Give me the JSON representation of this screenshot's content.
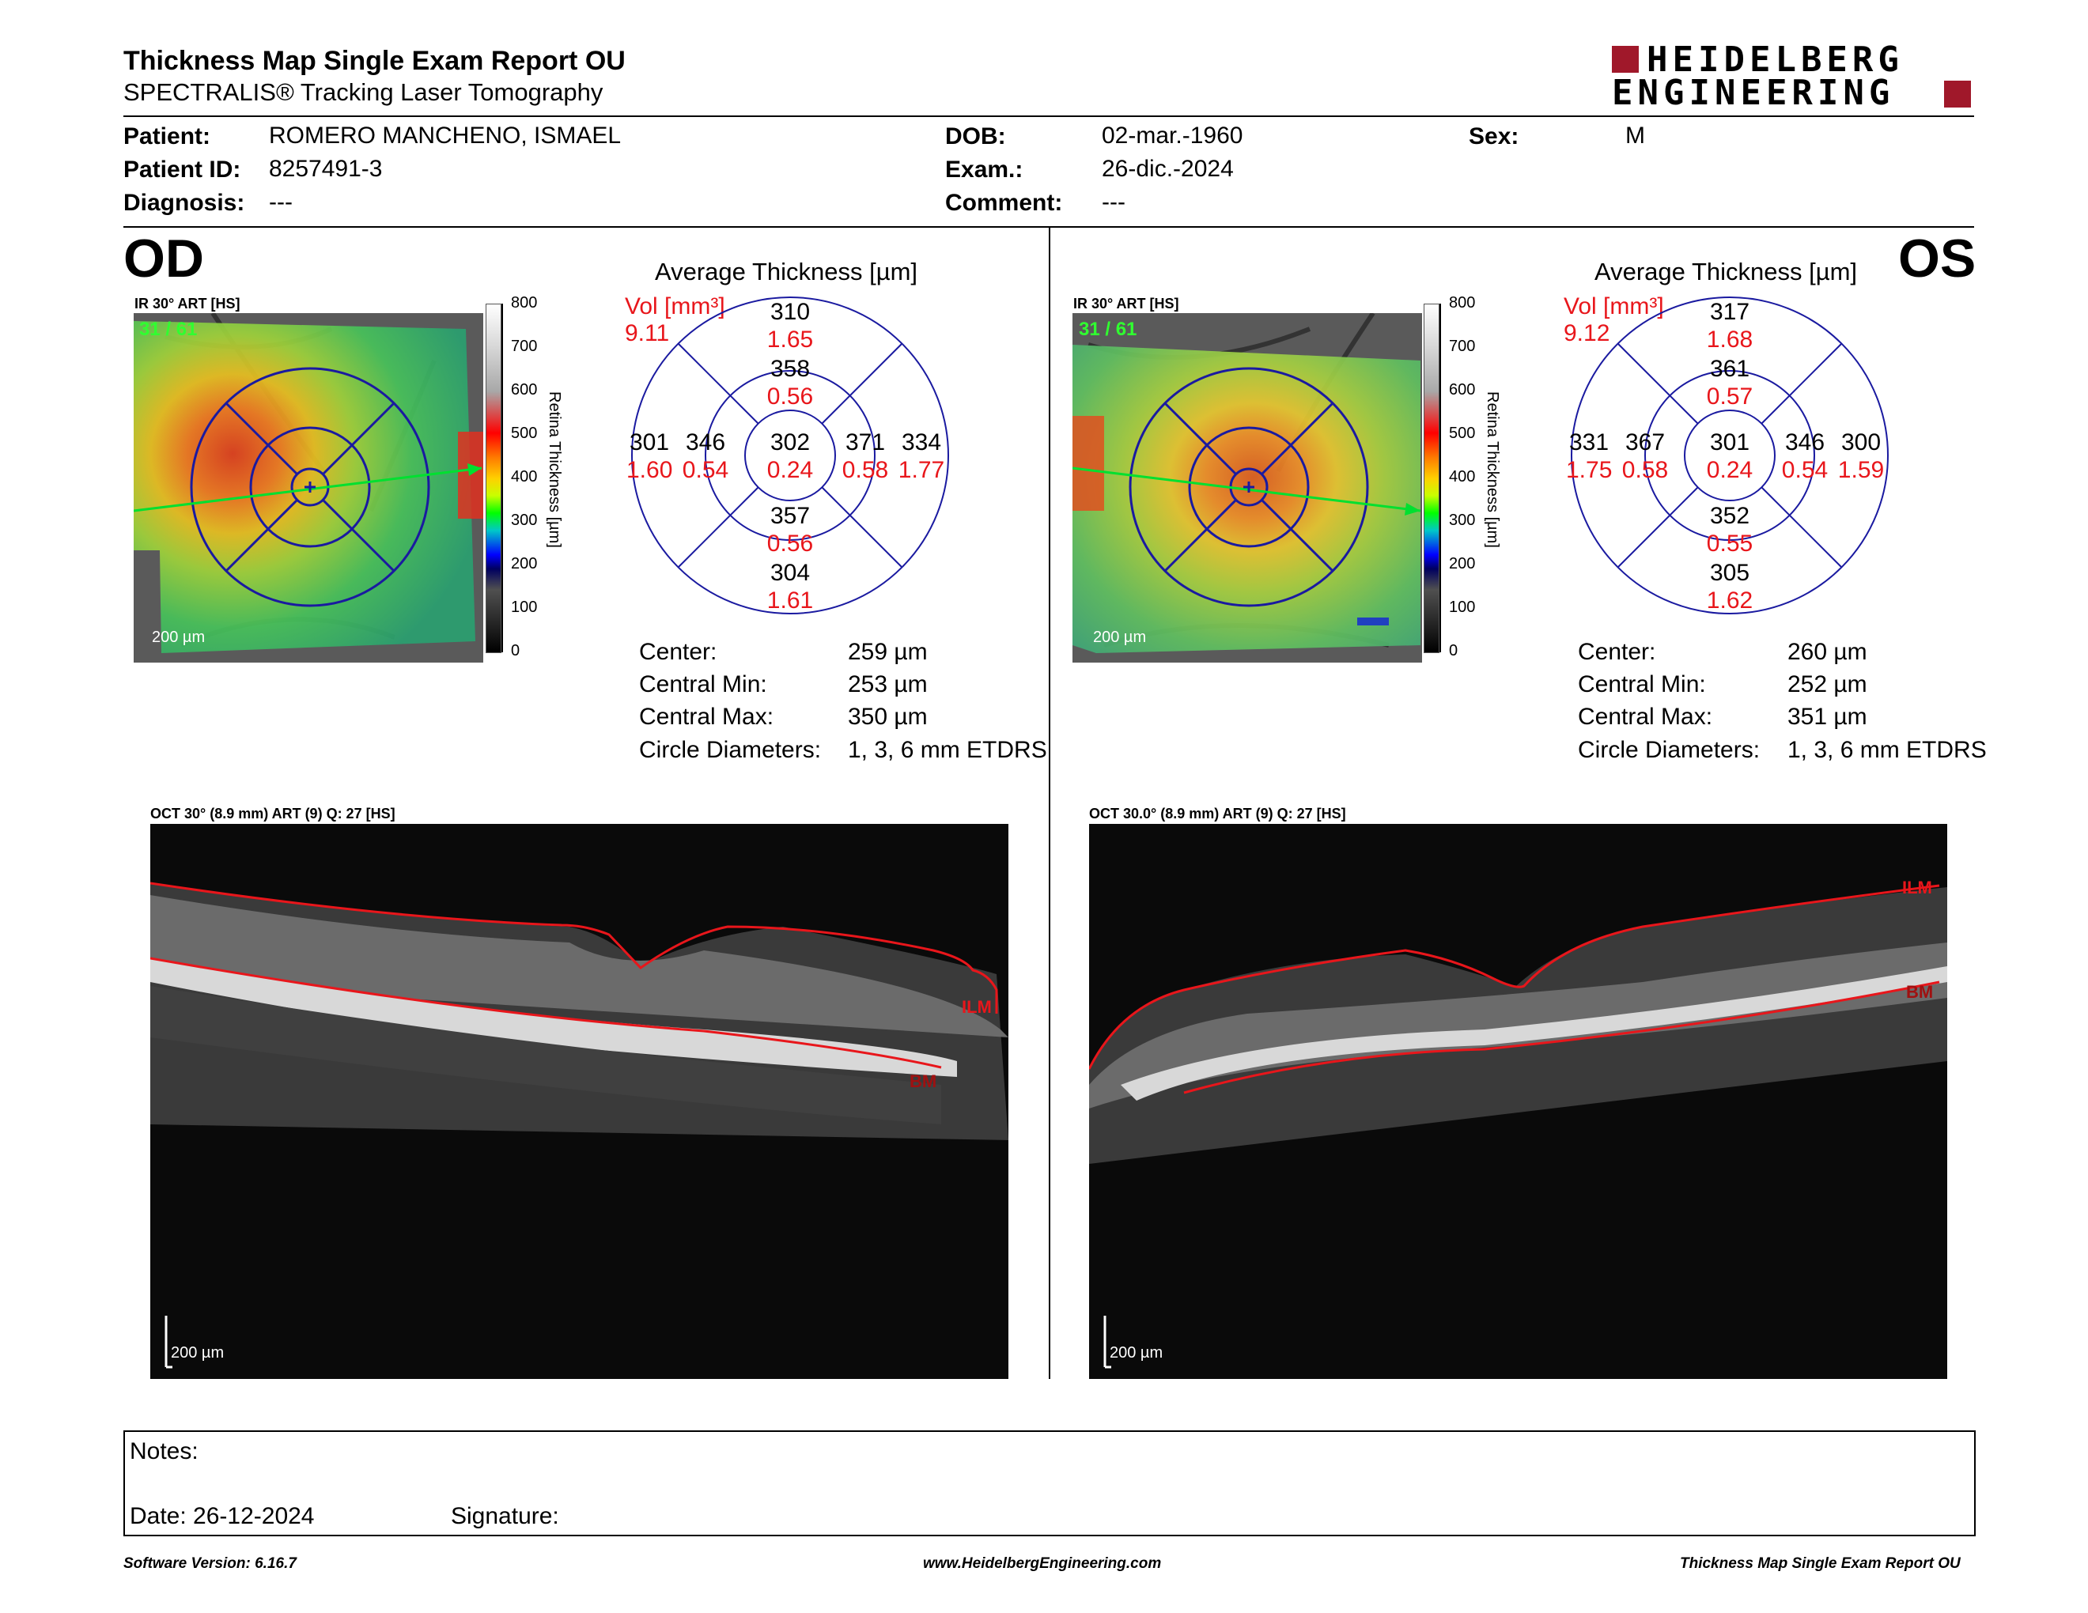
{
  "header": {
    "title": "Thickness Map Single Exam Report OU",
    "subtitle": "SPECTRALIS® Tracking Laser Tomography",
    "logo_line1": "HEIDELBERG",
    "logo_line2": "ENGINEERING"
  },
  "patient": {
    "patient_label": "Patient:",
    "patient_value": "ROMERO MANCHENO, ISMAEL",
    "id_label": "Patient ID:",
    "id_value": "8257491-3",
    "diag_label": "Diagnosis:",
    "diag_value": "---",
    "dob_label": "DOB:",
    "dob_value": "02-mar.-1960",
    "exam_label": "Exam.:",
    "exam_value": "26-dic.-2024",
    "comment_label": "Comment:",
    "comment_value": "---",
    "sex_label": "Sex:",
    "sex_value": "M"
  },
  "od": {
    "eye": "OD",
    "ir_label": "IR 30° ART [HS]",
    "frame": "31 / 61",
    "scale": "200 µm",
    "avg_title": "Average Thickness [µm]",
    "vol_label": "Vol [mm³]",
    "vol_value": "9.11",
    "grid": {
      "outer_sup": "310",
      "outer_sup_vol": "1.65",
      "inner_sup": "358",
      "inner_sup_vol": "0.56",
      "outer_temp": "301",
      "outer_temp_vol": "1.60",
      "inner_temp": "346",
      "inner_temp_vol": "0.54",
      "center": "302",
      "center_vol": "0.24",
      "inner_nas": "371",
      "inner_nas_vol": "0.58",
      "outer_nas": "334",
      "outer_nas_vol": "1.77",
      "inner_inf": "357",
      "inner_inf_vol": "0.56",
      "outer_inf": "304",
      "outer_inf_vol": "1.61"
    },
    "stats": {
      "center_label": "Center:",
      "center_value": "259 µm",
      "min_label": "Central Min:",
      "min_value": "253 µm",
      "max_label": "Central Max:",
      "max_value": "350 µm",
      "diam_label": "Circle Diameters:",
      "diam_value": "1, 3, 6 mm ETDRS"
    },
    "oct_label": "OCT 30° (8.9 mm) ART (9) Q: 27 [HS]",
    "oct_scale": "200 µm",
    "ilm": "ILM",
    "bm": "BM"
  },
  "os": {
    "eye": "OS",
    "ir_label": "IR 30° ART [HS]",
    "frame": "31 / 61",
    "scale": "200 µm",
    "avg_title": "Average Thickness [µm]",
    "vol_label": "Vol [mm³]",
    "vol_value": "9.12",
    "grid": {
      "outer_sup": "317",
      "outer_sup_vol": "1.68",
      "inner_sup": "361",
      "inner_sup_vol": "0.57",
      "outer_temp": "331",
      "outer_temp_vol": "1.75",
      "inner_temp": "367",
      "inner_temp_vol": "0.58",
      "center": "301",
      "center_vol": "0.24",
      "inner_nas": "346",
      "inner_nas_vol": "0.54",
      "outer_nas": "300",
      "outer_nas_vol": "1.59",
      "inner_inf": "352",
      "inner_inf_vol": "0.55",
      "outer_inf": "305",
      "outer_inf_vol": "1.62"
    },
    "stats": {
      "center_label": "Center:",
      "center_value": "260 µm",
      "min_label": "Central Min:",
      "min_value": "252 µm",
      "max_label": "Central Max:",
      "max_value": "351 µm",
      "diam_label": "Circle Diameters:",
      "diam_value": "1, 3, 6 mm ETDRS"
    },
    "oct_label": "OCT 30.0° (8.9 mm) ART (9) Q: 27 [HS]",
    "oct_scale": "200 µm",
    "ilm": "ILM",
    "bm": "BM"
  },
  "colorbar": {
    "ticks": [
      "800",
      "700",
      "600",
      "500",
      "400",
      "300",
      "200",
      "100",
      "0"
    ],
    "label": "Retina Thickness [µm]"
  },
  "notes": {
    "notes_label": "Notes:",
    "date_label": "Date: 26-12-2024",
    "signature_label": "Signature:"
  },
  "footer": {
    "software": "Software Version: 6.16.7",
    "website": "www.HeidelbergEngineering.com",
    "report": "Thickness Map Single Exam Report OU"
  },
  "colors": {
    "volume_red": "#e8161b",
    "grid_blue": "#1a1aa0",
    "logo_red": "#a0182a"
  }
}
